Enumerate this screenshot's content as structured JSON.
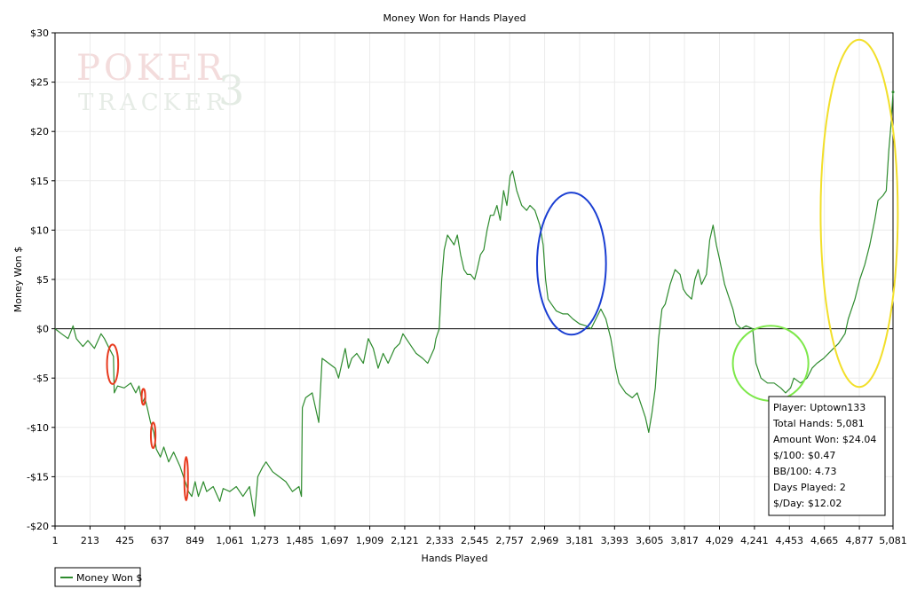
{
  "chart_data": {
    "type": "line",
    "title": "Money Won for Hands Played",
    "xlabel": "Hands Played",
    "ylabel": "Money Won $",
    "xlim": [
      1,
      5081
    ],
    "ylim": [
      -20,
      30
    ],
    "xticks": [
      1,
      213,
      425,
      637,
      849,
      1061,
      1273,
      1485,
      1697,
      1909,
      2121,
      2333,
      2545,
      2757,
      2969,
      3181,
      3393,
      3605,
      3817,
      4029,
      4241,
      4453,
      4665,
      4877,
      5081
    ],
    "xtick_labels": [
      "1",
      "213",
      "425",
      "637",
      "849",
      "1,061",
      "1,273",
      "1,485",
      "1,697",
      "1,909",
      "2,121",
      "2,333",
      "2,545",
      "2,757",
      "2,969",
      "3,181",
      "3,393",
      "3,605",
      "3,817",
      "4,029",
      "4,241",
      "4,453",
      "4,665",
      "4,877",
      "5,081"
    ],
    "yticks": [
      -20,
      -15,
      -10,
      -5,
      0,
      5,
      10,
      15,
      20,
      25,
      30
    ],
    "ytick_labels": [
      "-$20",
      "-$15",
      "-$10",
      "-$5",
      "$0",
      "$5",
      "$10",
      "$15",
      "$20",
      "$25",
      "$30"
    ],
    "grid": true,
    "legend": {
      "position": "bottom-left"
    },
    "series": [
      {
        "name": "Money Won $",
        "color": "#2e8b2e",
        "points": [
          [
            1,
            0
          ],
          [
            40,
            -0.5
          ],
          [
            80,
            -1.0
          ],
          [
            110,
            0.3
          ],
          [
            130,
            -1.0
          ],
          [
            170,
            -1.8
          ],
          [
            200,
            -1.2
          ],
          [
            240,
            -2.0
          ],
          [
            280,
            -0.5
          ],
          [
            300,
            -1.0
          ],
          [
            330,
            -2.0
          ],
          [
            355,
            -2.8
          ],
          [
            360,
            -6.5
          ],
          [
            380,
            -5.8
          ],
          [
            420,
            -6.0
          ],
          [
            460,
            -5.5
          ],
          [
            490,
            -6.5
          ],
          [
            510,
            -5.8
          ],
          [
            530,
            -7.5
          ],
          [
            545,
            -7.0
          ],
          [
            560,
            -8.0
          ],
          [
            580,
            -9.5
          ],
          [
            600,
            -10.5
          ],
          [
            615,
            -12.2
          ],
          [
            640,
            -13.0
          ],
          [
            660,
            -12.0
          ],
          [
            690,
            -13.5
          ],
          [
            720,
            -12.5
          ],
          [
            760,
            -14.0
          ],
          [
            790,
            -15.5
          ],
          [
            810,
            -16.5
          ],
          [
            830,
            -17.0
          ],
          [
            850,
            -15.5
          ],
          [
            870,
            -17.0
          ],
          [
            900,
            -15.5
          ],
          [
            920,
            -16.5
          ],
          [
            960,
            -16.0
          ],
          [
            1000,
            -17.5
          ],
          [
            1020,
            -16.2
          ],
          [
            1060,
            -16.5
          ],
          [
            1100,
            -16.0
          ],
          [
            1140,
            -17.0
          ],
          [
            1180,
            -16.0
          ],
          [
            1210,
            -19.0
          ],
          [
            1230,
            -15.0
          ],
          [
            1260,
            -14.0
          ],
          [
            1280,
            -13.5
          ],
          [
            1320,
            -14.5
          ],
          [
            1360,
            -15.0
          ],
          [
            1400,
            -15.5
          ],
          [
            1440,
            -16.5
          ],
          [
            1480,
            -16.0
          ],
          [
            1495,
            -17.0
          ],
          [
            1500,
            -8.0
          ],
          [
            1520,
            -7.0
          ],
          [
            1560,
            -6.5
          ],
          [
            1600,
            -9.5
          ],
          [
            1620,
            -3.0
          ],
          [
            1660,
            -3.5
          ],
          [
            1700,
            -4.0
          ],
          [
            1720,
            -5.0
          ],
          [
            1760,
            -2.0
          ],
          [
            1780,
            -4.0
          ],
          [
            1800,
            -3.0
          ],
          [
            1830,
            -2.5
          ],
          [
            1870,
            -3.5
          ],
          [
            1900,
            -1.0
          ],
          [
            1930,
            -2.0
          ],
          [
            1960,
            -4.0
          ],
          [
            1990,
            -2.5
          ],
          [
            2020,
            -3.5
          ],
          [
            2060,
            -2.0
          ],
          [
            2090,
            -1.5
          ],
          [
            2110,
            -0.5
          ],
          [
            2150,
            -1.5
          ],
          [
            2190,
            -2.5
          ],
          [
            2230,
            -3.0
          ],
          [
            2260,
            -3.5
          ],
          [
            2300,
            -2.0
          ],
          [
            2310,
            -1.0
          ],
          [
            2330,
            0.0
          ],
          [
            2345,
            5.0
          ],
          [
            2360,
            8.0
          ],
          [
            2380,
            9.5
          ],
          [
            2400,
            9.0
          ],
          [
            2420,
            8.5
          ],
          [
            2440,
            9.5
          ],
          [
            2460,
            7.5
          ],
          [
            2480,
            6.0
          ],
          [
            2500,
            5.5
          ],
          [
            2520,
            5.5
          ],
          [
            2545,
            5.0
          ],
          [
            2560,
            6.0
          ],
          [
            2580,
            7.5
          ],
          [
            2600,
            8.0
          ],
          [
            2620,
            10.0
          ],
          [
            2640,
            11.5
          ],
          [
            2660,
            11.5
          ],
          [
            2680,
            12.5
          ],
          [
            2700,
            11.0
          ],
          [
            2720,
            14.0
          ],
          [
            2740,
            12.5
          ],
          [
            2760,
            15.5
          ],
          [
            2775,
            16.0
          ],
          [
            2800,
            14.0
          ],
          [
            2830,
            12.5
          ],
          [
            2860,
            12.0
          ],
          [
            2880,
            12.5
          ],
          [
            2910,
            12.0
          ],
          [
            2940,
            10.5
          ],
          [
            2960,
            8.5
          ],
          [
            2975,
            5.0
          ],
          [
            2990,
            3.0
          ],
          [
            3010,
            2.5
          ],
          [
            3040,
            1.8
          ],
          [
            3080,
            1.5
          ],
          [
            3110,
            1.5
          ],
          [
            3140,
            1.0
          ],
          [
            3180,
            0.5
          ],
          [
            3220,
            0.3
          ],
          [
            3250,
            0.0
          ],
          [
            3280,
            1.0
          ],
          [
            3310,
            2.0
          ],
          [
            3340,
            1.0
          ],
          [
            3370,
            -1.0
          ],
          [
            3400,
            -4.0
          ],
          [
            3420,
            -5.5
          ],
          [
            3460,
            -6.5
          ],
          [
            3500,
            -7.0
          ],
          [
            3530,
            -6.5
          ],
          [
            3560,
            -8.0
          ],
          [
            3580,
            -9.0
          ],
          [
            3600,
            -10.5
          ],
          [
            3620,
            -8.5
          ],
          [
            3640,
            -6.0
          ],
          [
            3660,
            -1.0
          ],
          [
            3680,
            2.0
          ],
          [
            3700,
            2.5
          ],
          [
            3730,
            4.5
          ],
          [
            3760,
            6.0
          ],
          [
            3790,
            5.5
          ],
          [
            3810,
            4.0
          ],
          [
            3830,
            3.5
          ],
          [
            3860,
            3.0
          ],
          [
            3880,
            5.0
          ],
          [
            3900,
            6.0
          ],
          [
            3920,
            4.5
          ],
          [
            3950,
            5.5
          ],
          [
            3970,
            9.0
          ],
          [
            3990,
            10.5
          ],
          [
            4010,
            8.5
          ],
          [
            4030,
            7.0
          ],
          [
            4060,
            4.5
          ],
          [
            4090,
            3.0
          ],
          [
            4110,
            2.0
          ],
          [
            4130,
            0.5
          ],
          [
            4160,
            0.0
          ],
          [
            4190,
            0.3
          ],
          [
            4230,
            0.0
          ],
          [
            4250,
            -3.5
          ],
          [
            4280,
            -5.0
          ],
          [
            4320,
            -5.5
          ],
          [
            4360,
            -5.5
          ],
          [
            4400,
            -6.0
          ],
          [
            4430,
            -6.5
          ],
          [
            4460,
            -6.0
          ],
          [
            4480,
            -5.0
          ],
          [
            4520,
            -5.5
          ],
          [
            4560,
            -5.0
          ],
          [
            4590,
            -4.0
          ],
          [
            4620,
            -3.5
          ],
          [
            4660,
            -3.0
          ],
          [
            4690,
            -2.5
          ],
          [
            4720,
            -2.0
          ],
          [
            4750,
            -1.5
          ],
          [
            4790,
            -0.5
          ],
          [
            4810,
            1.0
          ],
          [
            4850,
            3.0
          ],
          [
            4880,
            5.0
          ],
          [
            4910,
            6.5
          ],
          [
            4940,
            8.5
          ],
          [
            4970,
            11.0
          ],
          [
            4990,
            13.0
          ],
          [
            5020,
            13.5
          ],
          [
            5040,
            14.0
          ],
          [
            5055,
            18.0
          ],
          [
            5070,
            21.0
          ],
          [
            5081,
            24.0
          ]
        ]
      }
    ],
    "annotations": [
      {
        "shape": "ellipse",
        "color": "#e83a1e",
        "x": 350,
        "y": -3.6,
        "rx": 34,
        "ry": 2.0
      },
      {
        "shape": "ellipse",
        "color": "#e83a1e",
        "x": 537,
        "y": -6.9,
        "rx": 11,
        "ry": 0.8
      },
      {
        "shape": "ellipse",
        "color": "#e83a1e",
        "x": 596,
        "y": -10.8,
        "rx": 14,
        "ry": 1.3
      },
      {
        "shape": "ellipse",
        "color": "#e83a1e",
        "x": 796,
        "y": -15.2,
        "rx": 11,
        "ry": 2.2
      },
      {
        "shape": "ellipse",
        "color": "#1a3ed2",
        "x": 3132,
        "y": 6.6,
        "rx": 209,
        "ry": 7.2
      },
      {
        "shape": "ellipse",
        "color": "#7de84a",
        "x": 4339,
        "y": -3.5,
        "rx": 229,
        "ry": 3.8
      },
      {
        "shape": "ellipse",
        "color": "#f2df2a",
        "x": 4876,
        "y": 11.7,
        "rx": 234,
        "ry": 17.6
      }
    ]
  },
  "legend": {
    "label": "Money Won $"
  },
  "watermark": {
    "word1": "POKER",
    "word2": "TRACKER",
    "version": "3"
  },
  "stats": [
    {
      "label": "Player",
      "value": "Uptown133"
    },
    {
      "label": "Total Hands",
      "value": "5,081"
    },
    {
      "label": "Amount Won",
      "value": "$24.04"
    },
    {
      "label": "$/100",
      "value": "$0.47"
    },
    {
      "label": "BB/100",
      "value": "4.73"
    },
    {
      "label": "Days Played",
      "value": "2"
    },
    {
      "label": "$/Day",
      "value": "$12.02"
    }
  ]
}
